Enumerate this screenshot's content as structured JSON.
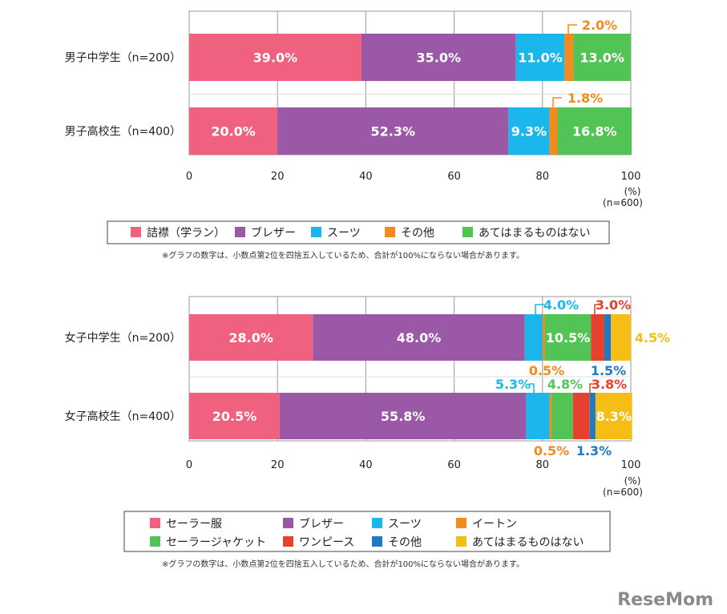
{
  "chart_data": [
    {
      "type": "bar",
      "stacked": true,
      "orientation": "horizontal",
      "categories": [
        "男子中学生（n=200）",
        "男子高校生（n=400）"
      ],
      "series": [
        {
          "name": "詰襟（学ラン）",
          "color": "#f0607f",
          "values": [
            39.0,
            20.0
          ],
          "labels": [
            "39.0%",
            "20.0%"
          ]
        },
        {
          "name": "ブレザー",
          "color": "#9b58a6",
          "values": [
            35.0,
            52.3
          ],
          "labels": [
            "35.0%",
            "52.3%"
          ]
        },
        {
          "name": "スーツ",
          "color": "#1bb7ec",
          "values": [
            11.0,
            9.3
          ],
          "labels": [
            "11.0%",
            "9.3%"
          ]
        },
        {
          "name": "その他",
          "color": "#f28a1c",
          "values": [
            2.0,
            1.8
          ],
          "labels": [
            "2.0%",
            "1.8%"
          ]
        },
        {
          "name": "あてはまるものはない",
          "color": "#52c455",
          "values": [
            13.0,
            16.8
          ],
          "labels": [
            "13.0%",
            "16.8%"
          ]
        }
      ],
      "xlim": [
        0,
        100
      ],
      "xticks": [
        "0",
        "20",
        "40",
        "60",
        "80",
        "100"
      ],
      "unit_label": "(%)",
      "n_label": "(n=600)",
      "grid": true,
      "legend_position": "bottom",
      "note": "※グラフの数字は、小数点第2位を四捨五入しているため、合計が100%にならない場合があります。"
    },
    {
      "type": "bar",
      "stacked": true,
      "orientation": "horizontal",
      "categories": [
        "女子中学生（n=200）",
        "女子高校生（n=400）"
      ],
      "series": [
        {
          "name": "セーラー服",
          "color": "#f0607f",
          "values": [
            28.0,
            20.5
          ],
          "labels": [
            "28.0%",
            "20.5%"
          ]
        },
        {
          "name": "ブレザー",
          "color": "#9b58a6",
          "values": [
            48.0,
            55.8
          ],
          "labels": [
            "48.0%",
            "55.8%"
          ]
        },
        {
          "name": "スーツ",
          "color": "#1bb7ec",
          "values": [
            4.0,
            5.3
          ],
          "labels": [
            "4.0%",
            "5.3%"
          ]
        },
        {
          "name": "イートン",
          "color": "#f28a1c",
          "values": [
            0.5,
            0.5
          ],
          "labels": [
            "0.5%",
            "0.5%"
          ]
        },
        {
          "name": "セーラージャケット",
          "color": "#52c455",
          "values": [
            10.5,
            4.8
          ],
          "labels": [
            "10.5%",
            "4.8%"
          ]
        },
        {
          "name": "ワンピース",
          "color": "#e5412e",
          "values": [
            3.0,
            3.8
          ],
          "labels": [
            "3.0%",
            "3.8%"
          ]
        },
        {
          "name": "その他",
          "color": "#1f7ac0",
          "values": [
            1.5,
            1.3
          ],
          "labels": [
            "1.5%",
            "1.3%"
          ]
        },
        {
          "name": "あてはまるものはない",
          "color": "#f6bd16",
          "values": [
            4.5,
            8.3
          ],
          "labels": [
            "4.5%",
            "8.3%"
          ]
        }
      ],
      "xlim": [
        0,
        100
      ],
      "xticks": [
        "0",
        "20",
        "40",
        "60",
        "80",
        "100"
      ],
      "unit_label": "(%)",
      "n_label": "(n=600)",
      "grid": true,
      "legend_position": "bottom",
      "legend_order": [
        "セーラー服",
        "ブレザー",
        "スーツ",
        "イートン",
        "セーラージャケット",
        "ワンピース",
        "その他",
        "あてはまるものはない"
      ],
      "note": "※グラフの数字は、小数点第2位を四捨五入しているため、合計が100%にならない場合があります。"
    }
  ],
  "watermark": "ReseMom"
}
